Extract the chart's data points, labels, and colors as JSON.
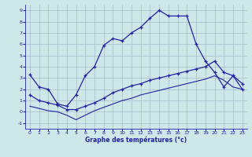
{
  "xlabel": "Graphe des températures (°c)",
  "background_color": "#cce8e8",
  "line_color": "#2222aa",
  "grid_color": "#aabbcc",
  "xlim": [
    -0.5,
    23.5
  ],
  "ylim": [
    -1.5,
    9.5
  ],
  "xticks": [
    0,
    1,
    2,
    3,
    4,
    5,
    6,
    7,
    8,
    9,
    10,
    11,
    12,
    13,
    14,
    15,
    16,
    17,
    18,
    19,
    20,
    21,
    22,
    23
  ],
  "yticks": [
    -1,
    0,
    1,
    2,
    3,
    4,
    5,
    6,
    7,
    8,
    9
  ],
  "line1_x": [
    0,
    1,
    2,
    3,
    4,
    5,
    6,
    7,
    8,
    9,
    10,
    11,
    12,
    13,
    14,
    15,
    16,
    17,
    18,
    19,
    20,
    21,
    22,
    23
  ],
  "line1_y": [
    3.3,
    2.2,
    2.0,
    0.7,
    0.5,
    1.5,
    3.2,
    4.0,
    5.9,
    6.5,
    6.3,
    7.0,
    7.5,
    8.3,
    9.0,
    8.5,
    8.5,
    8.5,
    6.0,
    4.5,
    3.5,
    2.2,
    3.2,
    2.0
  ],
  "line2_x": [
    0,
    1,
    2,
    3,
    4,
    5,
    6,
    7,
    8,
    9,
    10,
    11,
    12,
    13,
    14,
    15,
    16,
    17,
    18,
    19,
    20,
    21,
    22,
    23
  ],
  "line2_y": [
    1.5,
    1.0,
    0.8,
    0.6,
    0.2,
    0.2,
    0.5,
    0.8,
    1.2,
    1.7,
    2.0,
    2.3,
    2.5,
    2.8,
    3.0,
    3.2,
    3.4,
    3.6,
    3.8,
    4.0,
    4.5,
    3.5,
    3.2,
    2.5
  ],
  "line3_x": [
    0,
    1,
    2,
    3,
    4,
    5,
    6,
    7,
    8,
    9,
    10,
    11,
    12,
    13,
    14,
    15,
    16,
    17,
    18,
    19,
    20,
    21,
    22,
    23
  ],
  "line3_y": [
    0.5,
    0.3,
    0.1,
    0.0,
    -0.3,
    -0.7,
    -0.3,
    0.1,
    0.4,
    0.7,
    1.0,
    1.2,
    1.5,
    1.7,
    1.9,
    2.1,
    2.3,
    2.5,
    2.7,
    2.9,
    3.2,
    2.8,
    2.2,
    2.0
  ]
}
